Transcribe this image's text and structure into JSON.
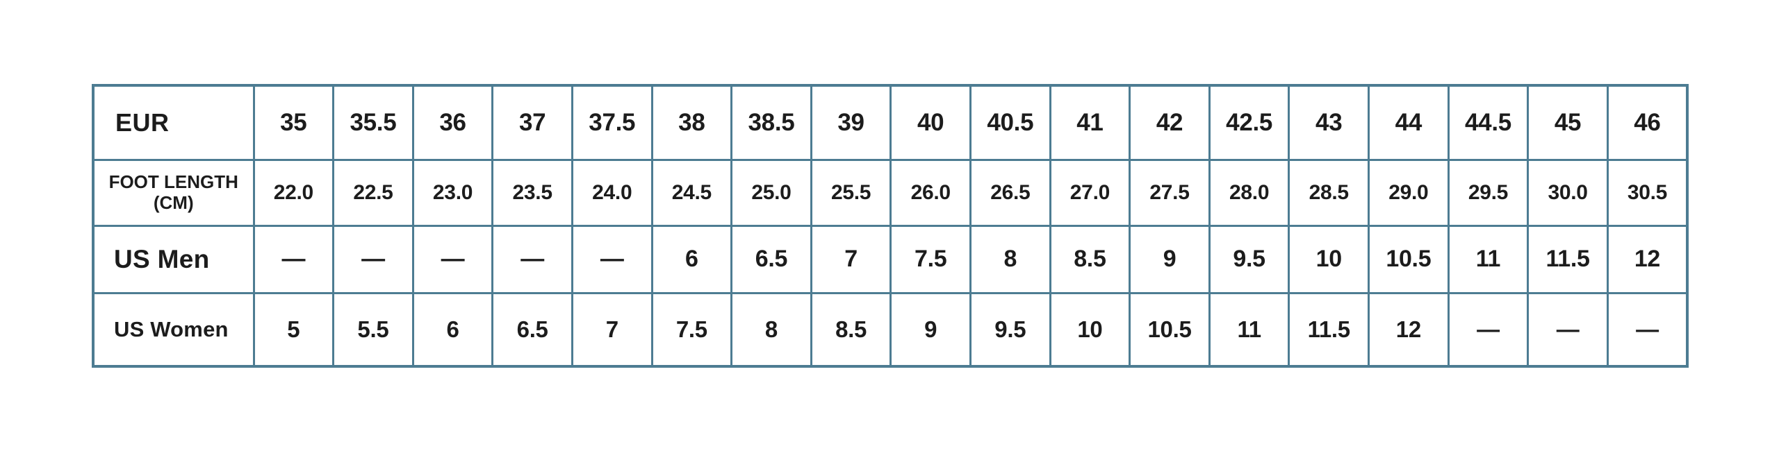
{
  "page": {
    "background_color": "#ffffff"
  },
  "table": {
    "border_color": "#4d7c92",
    "text_color": "#1c1c1c",
    "cell_background": "#ffffff",
    "empty_marker": "—",
    "rows": [
      {
        "key": "eur",
        "label": "EUR",
        "label_lines": [
          "EUR"
        ],
        "values": [
          "35",
          "35.5",
          "36",
          "37",
          "37.5",
          "38",
          "38.5",
          "39",
          "40",
          "40.5",
          "41",
          "42",
          "42.5",
          "43",
          "44",
          "44.5",
          "45",
          "46"
        ]
      },
      {
        "key": "foot-length",
        "label": "FOOT LENGTH (CM)",
        "label_lines": [
          "FOOT LENGTH",
          "(CM)"
        ],
        "values": [
          "22.0",
          "22.5",
          "23.0",
          "23.5",
          "24.0",
          "24.5",
          "25.0",
          "25.5",
          "26.0",
          "26.5",
          "27.0",
          "27.5",
          "28.0",
          "28.5",
          "29.0",
          "29.5",
          "30.0",
          "30.5"
        ]
      },
      {
        "key": "us-men",
        "label": "US Men",
        "label_lines": [
          "US Men"
        ],
        "values": [
          "—",
          "—",
          "—",
          "—",
          "—",
          "6",
          "6.5",
          "7",
          "7.5",
          "8",
          "8.5",
          "9",
          "9.5",
          "10",
          "10.5",
          "11",
          "11.5",
          "12"
        ]
      },
      {
        "key": "us-women",
        "label": "US Women",
        "label_lines": [
          "US Women"
        ],
        "values": [
          "5",
          "5.5",
          "6",
          "6.5",
          "7",
          "7.5",
          "8",
          "8.5",
          "9",
          "9.5",
          "10",
          "10.5",
          "11",
          "11.5",
          "12",
          "—",
          "—",
          "—"
        ]
      }
    ]
  },
  "chart_data": {
    "type": "table",
    "title": "",
    "row_headers": [
      "EUR",
      "FOOT LENGTH (CM)",
      "US Men",
      "US Women"
    ],
    "rows": [
      {
        "name": "EUR",
        "values": [
          35,
          35.5,
          36,
          37,
          37.5,
          38,
          38.5,
          39,
          40,
          40.5,
          41,
          42,
          42.5,
          43,
          44,
          44.5,
          45,
          46
        ]
      },
      {
        "name": "FOOT LENGTH (CM)",
        "values": [
          22.0,
          22.5,
          23.0,
          23.5,
          24.0,
          24.5,
          25.0,
          25.5,
          26.0,
          26.5,
          27.0,
          27.5,
          28.0,
          28.5,
          29.0,
          29.5,
          30.0,
          30.5
        ]
      },
      {
        "name": "US Men",
        "values": [
          null,
          null,
          null,
          null,
          null,
          6,
          6.5,
          7,
          7.5,
          8,
          8.5,
          9,
          9.5,
          10,
          10.5,
          11,
          11.5,
          12
        ]
      },
      {
        "name": "US Women",
        "values": [
          5,
          5.5,
          6,
          6.5,
          7,
          7.5,
          8,
          8.5,
          9,
          9.5,
          10,
          10.5,
          11,
          11.5,
          12,
          null,
          null,
          null
        ]
      }
    ]
  }
}
